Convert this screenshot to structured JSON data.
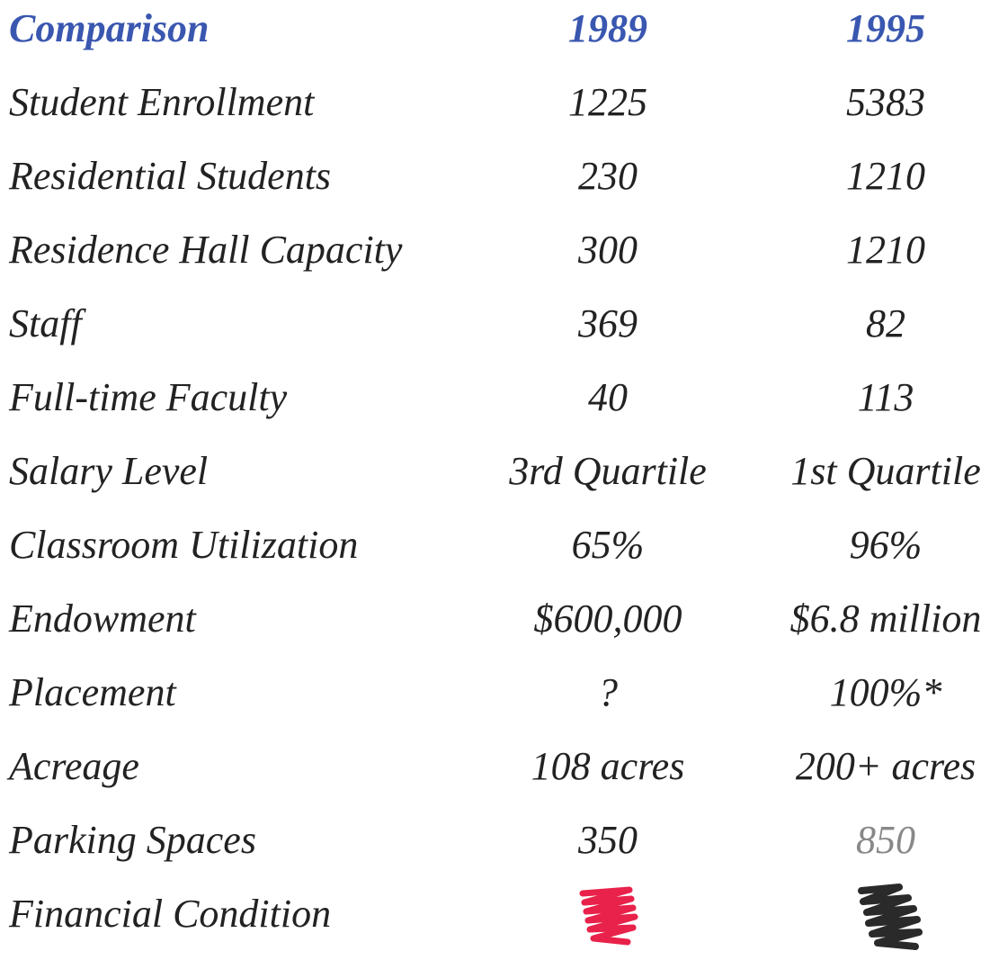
{
  "table": {
    "header": [
      "Comparison",
      "1989",
      "1995"
    ],
    "rows": [
      {
        "label": "Student Enrollment",
        "values": [
          "1225",
          "5383"
        ]
      },
      {
        "label": "Residential Students",
        "values": [
          "230",
          "1210"
        ]
      },
      {
        "label": "Residence Hall Capacity",
        "values": [
          "300",
          "1210"
        ]
      },
      {
        "label": "Staff",
        "values": [
          "369",
          "82"
        ]
      },
      {
        "label": "Full-time Faculty",
        "values": [
          "40",
          "113"
        ]
      },
      {
        "label": "Salary Level",
        "values": [
          "3rd Quartile",
          "1st Quartile"
        ]
      },
      {
        "label": "Classroom Utilization",
        "values": [
          "65%",
          "96%"
        ]
      },
      {
        "label": "Endowment",
        "values": [
          "$600,000",
          "$6.8 million"
        ]
      },
      {
        "label": "Placement",
        "values": [
          "?",
          "100%*"
        ]
      },
      {
        "label": "Acreage",
        "values": [
          "108 acres",
          "200+ acres"
        ]
      },
      {
        "label": "Parking Spaces",
        "values": [
          "350",
          "850"
        ]
      },
      {
        "label": "Financial Condition"
      }
    ]
  }
}
